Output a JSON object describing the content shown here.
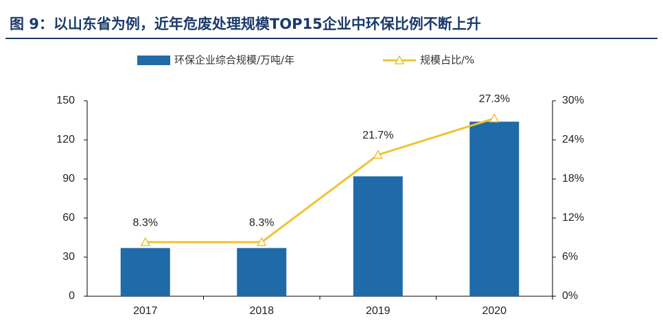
{
  "chart_data": {
    "type": "bar-line",
    "title": "图 9：以山东省为例，近年危废处理规模TOP15企业中环保比例不断上升",
    "categories": [
      "2017",
      "2018",
      "2019",
      "2020"
    ],
    "series": [
      {
        "name": "环保企业综合规模/万吨/年",
        "type": "bar",
        "color": "#1f6aa8",
        "values": [
          37,
          37,
          92,
          134
        ]
      },
      {
        "name": "规模占比/%",
        "type": "line",
        "axis": "y2",
        "color": "#f0c22e",
        "values": [
          8.3,
          8.3,
          21.7,
          27.3
        ],
        "value_labels": [
          "8.3%",
          "8.3%",
          "21.7%",
          "27.3%"
        ]
      }
    ],
    "ylim": [
      0,
      150
    ],
    "yticks": [
      0,
      30,
      60,
      90,
      120,
      150
    ],
    "y2lim": [
      0,
      30
    ],
    "y2ticks": [
      {
        "value": 0,
        "label": "0%"
      },
      {
        "value": 6,
        "label": "6%"
      },
      {
        "value": 12,
        "label": "12%"
      },
      {
        "value": 18,
        "label": "18%"
      },
      {
        "value": 24,
        "label": "24%"
      },
      {
        "value": 30,
        "label": "30%"
      }
    ],
    "grid": false
  }
}
